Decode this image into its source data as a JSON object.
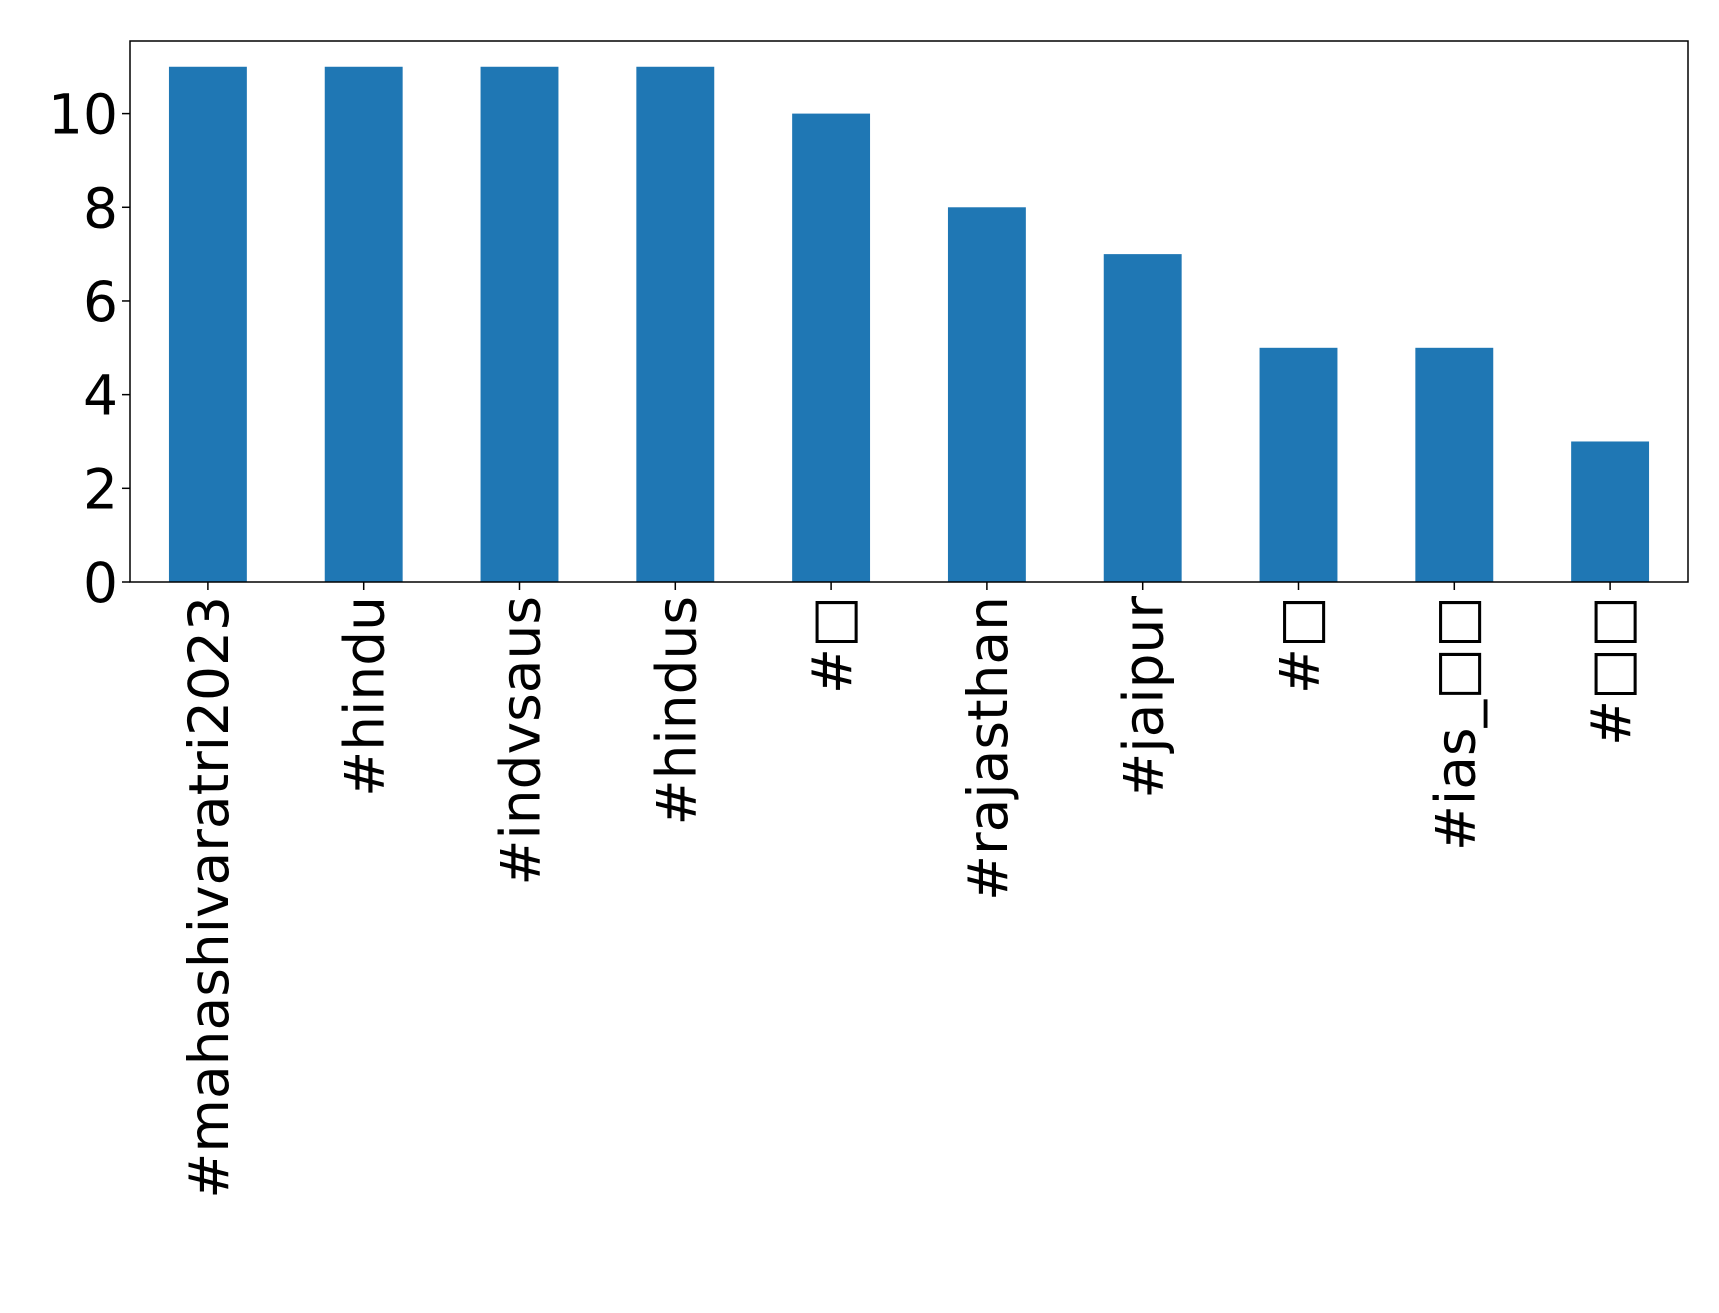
{
  "chart_data": {
    "type": "bar",
    "categories": [
      "#mahashivaratri2023",
      "#hindu",
      "#indvsaus",
      "#hindus",
      "#□",
      "#rajasthan",
      "#jaipur",
      "#□",
      "#ias_□□",
      "#□□"
    ],
    "values": [
      11,
      11,
      11,
      11,
      10,
      8,
      7,
      5,
      5,
      3
    ],
    "color": "#1f77b4",
    "ylim": [
      0,
      11.55
    ],
    "yticks": [
      0,
      2,
      4,
      6,
      8,
      10
    ],
    "grid": false
  }
}
